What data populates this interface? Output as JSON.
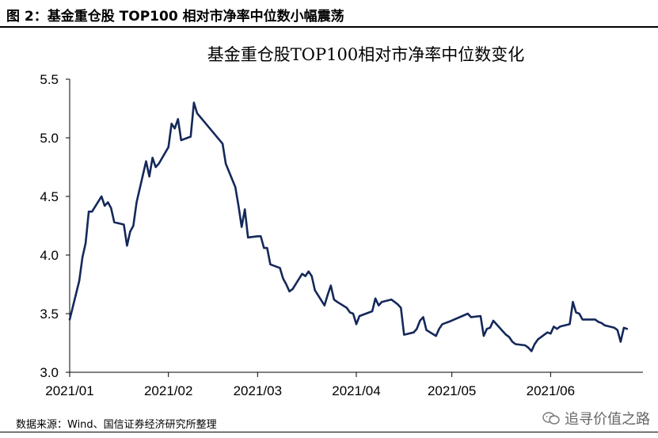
{
  "header": {
    "figure_title": "图 2：基金重仓股 TOP100 相对市净率中位数小幅震荡"
  },
  "footer": {
    "source": "数据来源：Wind、国信证券经济研究所整理",
    "watermark": "追寻价值之路",
    "watermark_icon": "wechat-icon"
  },
  "colors": {
    "line": "#14285a",
    "axis": "#000000"
  },
  "chart_data": {
    "type": "line",
    "title": "基金重仓股TOP100相对市净率中位数变化",
    "xlabel": "",
    "ylabel": "",
    "ylim": [
      3.0,
      5.5
    ],
    "yticks": [
      3.0,
      3.5,
      4.0,
      4.5,
      5.0,
      5.5
    ],
    "ytick_labels": [
      "3.0",
      "3.5",
      "4.0",
      "4.5",
      "5.0",
      "5.5"
    ],
    "xlim": [
      "2021-01-01",
      "2021-06-30"
    ],
    "xticks": [
      "2021-01-01",
      "2021-02-01",
      "2021-03-01",
      "2021-04-01",
      "2021-05-01",
      "2021-06-01"
    ],
    "xtick_labels": [
      "2021/01",
      "2021/02",
      "2021/03",
      "2021/04",
      "2021/05",
      "2021/06"
    ],
    "grid": false,
    "legend": "none",
    "series": [
      {
        "x": [
          "2021-01-01",
          "2021-01-04",
          "2021-01-05",
          "2021-01-06",
          "2021-01-07",
          "2021-01-08",
          "2021-01-11",
          "2021-01-12",
          "2021-01-13",
          "2021-01-14",
          "2021-01-15",
          "2021-01-18",
          "2021-01-19",
          "2021-01-20",
          "2021-01-21",
          "2021-01-22",
          "2021-01-25",
          "2021-01-26",
          "2021-01-27",
          "2021-01-28",
          "2021-01-29",
          "2021-02-01",
          "2021-02-02",
          "2021-02-03",
          "2021-02-04",
          "2021-02-05",
          "2021-02-08",
          "2021-02-09",
          "2021-02-10",
          "2021-02-18",
          "2021-02-19",
          "2021-02-22",
          "2021-02-23",
          "2021-02-24",
          "2021-02-25",
          "2021-02-26",
          "2021-03-01",
          "2021-03-02",
          "2021-03-03",
          "2021-03-04",
          "2021-03-05",
          "2021-03-08",
          "2021-03-09",
          "2021-03-10",
          "2021-03-11",
          "2021-03-12",
          "2021-03-15",
          "2021-03-16",
          "2021-03-17",
          "2021-03-18",
          "2021-03-19",
          "2021-03-22",
          "2021-03-23",
          "2021-03-24",
          "2021-03-25",
          "2021-03-26",
          "2021-03-29",
          "2021-03-30",
          "2021-03-31",
          "2021-04-01",
          "2021-04-02",
          "2021-04-06",
          "2021-04-07",
          "2021-04-08",
          "2021-04-09",
          "2021-04-12",
          "2021-04-13",
          "2021-04-14",
          "2021-04-15",
          "2021-04-16",
          "2021-04-19",
          "2021-04-20",
          "2021-04-21",
          "2021-04-22",
          "2021-04-23",
          "2021-04-26",
          "2021-04-27",
          "2021-04-28",
          "2021-04-29",
          "2021-04-30",
          "2021-05-06",
          "2021-05-07",
          "2021-05-10",
          "2021-05-11",
          "2021-05-12",
          "2021-05-13",
          "2021-05-14",
          "2021-05-17",
          "2021-05-18",
          "2021-05-19",
          "2021-05-20",
          "2021-05-21",
          "2021-05-24",
          "2021-05-25",
          "2021-05-26",
          "2021-05-27",
          "2021-05-28",
          "2021-05-31",
          "2021-06-01",
          "2021-06-02",
          "2021-06-03",
          "2021-06-04",
          "2021-06-07",
          "2021-06-08",
          "2021-06-09",
          "2021-06-10",
          "2021-06-11",
          "2021-06-15",
          "2021-06-16",
          "2021-06-17",
          "2021-06-18",
          "2021-06-21",
          "2021-06-22",
          "2021-06-23",
          "2021-06-24",
          "2021-06-25"
        ],
        "values": [
          3.45,
          3.78,
          3.98,
          4.1,
          4.37,
          4.37,
          4.5,
          4.42,
          4.45,
          4.4,
          4.28,
          4.26,
          4.08,
          4.2,
          4.25,
          4.45,
          4.8,
          4.67,
          4.83,
          4.75,
          4.78,
          4.92,
          5.12,
          5.08,
          5.16,
          4.98,
          5.01,
          5.3,
          5.21,
          4.95,
          4.78,
          4.58,
          4.42,
          4.24,
          4.39,
          4.15,
          4.16,
          4.16,
          4.06,
          4.06,
          3.92,
          3.89,
          3.8,
          3.75,
          3.69,
          3.71,
          3.84,
          3.82,
          3.86,
          3.82,
          3.7,
          3.57,
          3.66,
          3.74,
          3.62,
          3.6,
          3.55,
          3.51,
          3.5,
          3.41,
          3.48,
          3.52,
          3.63,
          3.57,
          3.6,
          3.62,
          3.6,
          3.58,
          3.55,
          3.32,
          3.34,
          3.37,
          3.44,
          3.47,
          3.36,
          3.31,
          3.37,
          3.41,
          3.42,
          3.43,
          3.5,
          3.47,
          3.48,
          3.31,
          3.37,
          3.38,
          3.44,
          3.35,
          3.32,
          3.3,
          3.26,
          3.24,
          3.23,
          3.21,
          3.18,
          3.24,
          3.28,
          3.34,
          3.33,
          3.39,
          3.37,
          3.39,
          3.41,
          3.6,
          3.51,
          3.5,
          3.45,
          3.45,
          3.43,
          3.42,
          3.4,
          3.38,
          3.36,
          3.26,
          3.38,
          3.37
        ]
      }
    ]
  }
}
